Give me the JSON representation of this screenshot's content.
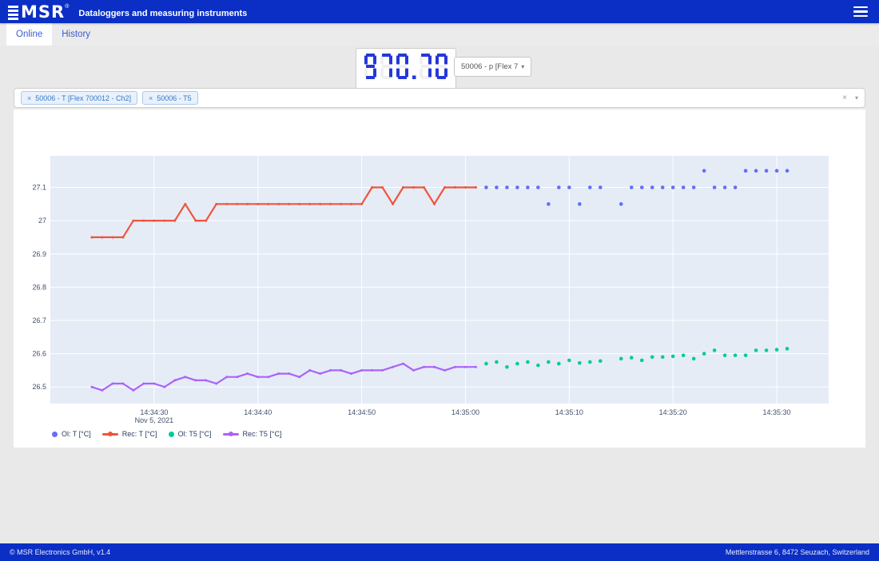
{
  "header": {
    "brand": "MSR",
    "registered": "®",
    "title": "Dataloggers and measuring instruments"
  },
  "tabs": [
    {
      "label": "Online",
      "active": true
    },
    {
      "label": "History",
      "active": false
    }
  ],
  "display": {
    "value": "970.70",
    "channel_select": {
      "label": "50006 - p [Flex 7",
      "caret": "▾"
    }
  },
  "series_select": {
    "chips": [
      {
        "remove": "×",
        "label": "50006 - T [Flex 700012 - Ch2]"
      },
      {
        "remove": "×",
        "label": "50006 - T5"
      }
    ],
    "clear": "×",
    "caret": "▾"
  },
  "chart_data": {
    "type": "line",
    "title": "",
    "time_base": "seconds after 14:34:20, Nov 5 2021",
    "x_axis": {
      "range_seconds": [
        0,
        75
      ],
      "ticks": [
        {
          "t": 10,
          "label": "14:34:30",
          "sub": "Nov 5, 2021"
        },
        {
          "t": 20,
          "label": "14:34:40"
        },
        {
          "t": 30,
          "label": "14:34:50"
        },
        {
          "t": 40,
          "label": "14:35:00"
        },
        {
          "t": 50,
          "label": "14:35:10"
        },
        {
          "t": 60,
          "label": "14:35:20"
        },
        {
          "t": 70,
          "label": "14:35:30"
        }
      ]
    },
    "y_axis": {
      "range": [
        26.45,
        27.195
      ],
      "ticks": [
        {
          "v": 27.1,
          "label": "27.1"
        },
        {
          "v": 27.0,
          "label": "27"
        },
        {
          "v": 26.9,
          "label": "26.9"
        },
        {
          "v": 26.8,
          "label": "26.8"
        },
        {
          "v": 26.7,
          "label": "26.7"
        },
        {
          "v": 26.6,
          "label": "26.6"
        },
        {
          "v": 26.5,
          "label": "26.5"
        }
      ]
    },
    "plot_bg": "#e5ecf6",
    "grid_color": "#ffffff",
    "tick_color": "#42506b",
    "legend_position": "bottom-left",
    "series": [
      {
        "name": "Ol: T [°C]",
        "mode": "markers",
        "color": "#636efa",
        "points": [
          [
            42,
            27.1
          ],
          [
            43,
            27.1
          ],
          [
            44,
            27.1
          ],
          [
            45,
            27.1
          ],
          [
            46,
            27.1
          ],
          [
            47,
            27.1
          ],
          [
            48,
            27.05
          ],
          [
            49,
            27.1
          ],
          [
            50,
            27.1
          ],
          [
            51,
            27.05
          ],
          [
            52,
            27.1
          ],
          [
            53,
            27.1
          ],
          [
            55,
            27.05
          ],
          [
            56,
            27.1
          ],
          [
            57,
            27.1
          ],
          [
            58,
            27.1
          ],
          [
            59,
            27.1
          ],
          [
            60,
            27.1
          ],
          [
            61,
            27.1
          ],
          [
            62,
            27.1
          ],
          [
            63,
            27.15
          ],
          [
            64,
            27.1
          ],
          [
            65,
            27.1
          ],
          [
            66,
            27.1
          ],
          [
            67,
            27.15
          ],
          [
            68,
            27.15
          ],
          [
            69,
            27.15
          ],
          [
            70,
            27.15
          ],
          [
            71,
            27.15
          ]
        ]
      },
      {
        "name": "Rec: T [°C]",
        "mode": "lines+markers",
        "color": "#ef553b",
        "points": [
          [
            4,
            26.95
          ],
          [
            5,
            26.95
          ],
          [
            6,
            26.95
          ],
          [
            7,
            26.95
          ],
          [
            8,
            27
          ],
          [
            9,
            27
          ],
          [
            10,
            27
          ],
          [
            11,
            27
          ],
          [
            12,
            27
          ],
          [
            13,
            27.05
          ],
          [
            14,
            27
          ],
          [
            15,
            27
          ],
          [
            16,
            27.05
          ],
          [
            17,
            27.05
          ],
          [
            18,
            27.05
          ],
          [
            19,
            27.05
          ],
          [
            20,
            27.05
          ],
          [
            21,
            27.05
          ],
          [
            22,
            27.05
          ],
          [
            23,
            27.05
          ],
          [
            24,
            27.05
          ],
          [
            25,
            27.05
          ],
          [
            26,
            27.05
          ],
          [
            27,
            27.05
          ],
          [
            28,
            27.05
          ],
          [
            29,
            27.05
          ],
          [
            30,
            27.05
          ],
          [
            31,
            27.1
          ],
          [
            32,
            27.1
          ],
          [
            33,
            27.05
          ],
          [
            34,
            27.1
          ],
          [
            35,
            27.1
          ],
          [
            36,
            27.1
          ],
          [
            37,
            27.05
          ],
          [
            38,
            27.1
          ],
          [
            39,
            27.1
          ],
          [
            40,
            27.1
          ],
          [
            41,
            27.1
          ]
        ]
      },
      {
        "name": "Ol: T5 [°C]",
        "mode": "markers",
        "color": "#00cc96",
        "points": [
          [
            42,
            26.57
          ],
          [
            43,
            26.575
          ],
          [
            44,
            26.56
          ],
          [
            45,
            26.57
          ],
          [
            46,
            26.575
          ],
          [
            47,
            26.565
          ],
          [
            48,
            26.575
          ],
          [
            49,
            26.57
          ],
          [
            50,
            26.58
          ],
          [
            51,
            26.572
          ],
          [
            52,
            26.575
          ],
          [
            53,
            26.578
          ],
          [
            55,
            26.585
          ],
          [
            56,
            26.588
          ],
          [
            57,
            26.58
          ],
          [
            58,
            26.59
          ],
          [
            59,
            26.59
          ],
          [
            60,
            26.592
          ],
          [
            61,
            26.595
          ],
          [
            62,
            26.585
          ],
          [
            63,
            26.6
          ],
          [
            64,
            26.61
          ],
          [
            65,
            26.595
          ],
          [
            66,
            26.595
          ],
          [
            67,
            26.595
          ],
          [
            68,
            26.61
          ],
          [
            69,
            26.61
          ],
          [
            70,
            26.612
          ],
          [
            71,
            26.615
          ]
        ]
      },
      {
        "name": "Rec: T5 [°C]",
        "mode": "lines+markers",
        "color": "#ab63fa",
        "points": [
          [
            4,
            26.5
          ],
          [
            5,
            26.49
          ],
          [
            6,
            26.51
          ],
          [
            7,
            26.51
          ],
          [
            8,
            26.49
          ],
          [
            9,
            26.51
          ],
          [
            10,
            26.51
          ],
          [
            11,
            26.5
          ],
          [
            12,
            26.52
          ],
          [
            13,
            26.53
          ],
          [
            14,
            26.52
          ],
          [
            15,
            26.52
          ],
          [
            16,
            26.51
          ],
          [
            17,
            26.53
          ],
          [
            18,
            26.53
          ],
          [
            19,
            26.54
          ],
          [
            20,
            26.53
          ],
          [
            21,
            26.53
          ],
          [
            22,
            26.54
          ],
          [
            23,
            26.54
          ],
          [
            24,
            26.53
          ],
          [
            25,
            26.55
          ],
          [
            26,
            26.54
          ],
          [
            27,
            26.55
          ],
          [
            28,
            26.55
          ],
          [
            29,
            26.54
          ],
          [
            30,
            26.55
          ],
          [
            31,
            26.55
          ],
          [
            32,
            26.55
          ],
          [
            33,
            26.56
          ],
          [
            34,
            26.57
          ],
          [
            35,
            26.55
          ],
          [
            36,
            26.56
          ],
          [
            37,
            26.56
          ],
          [
            38,
            26.55
          ],
          [
            39,
            26.56
          ],
          [
            40,
            26.56
          ],
          [
            41,
            26.56
          ]
        ]
      }
    ]
  },
  "footer": {
    "left": "© MSR Electronics GmbH, v1.4",
    "right": "Mettlenstrasse 6, 8472 Seuzach, Switzerland"
  },
  "colors": {
    "header_bg": "#0b2fc4",
    "digit_blue": "#2438d8",
    "digit_ghost": "#f0f0f0",
    "page_bg": "#e9e9e9",
    "tab_text": "#3c5ccf"
  }
}
